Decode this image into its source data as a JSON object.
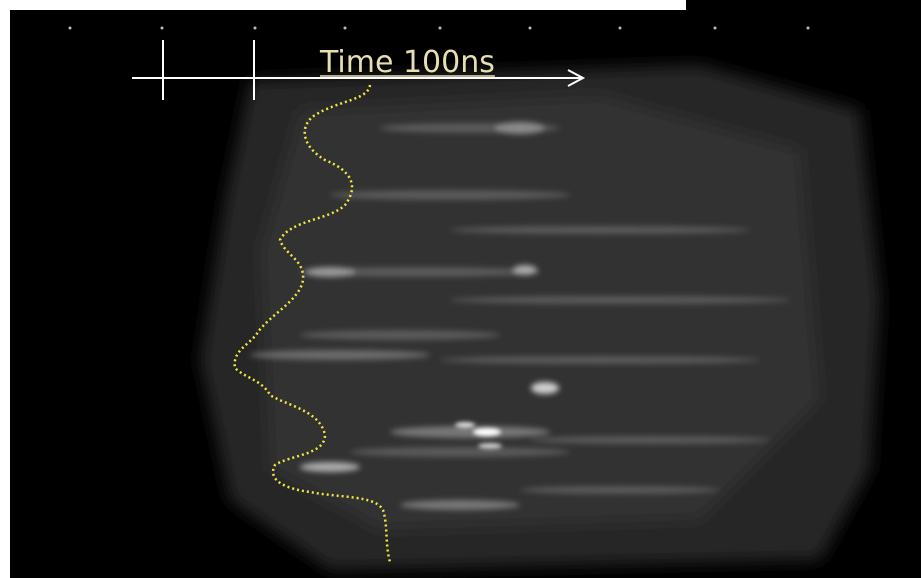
{
  "annotation": {
    "label": "Time 100ns"
  }
}
